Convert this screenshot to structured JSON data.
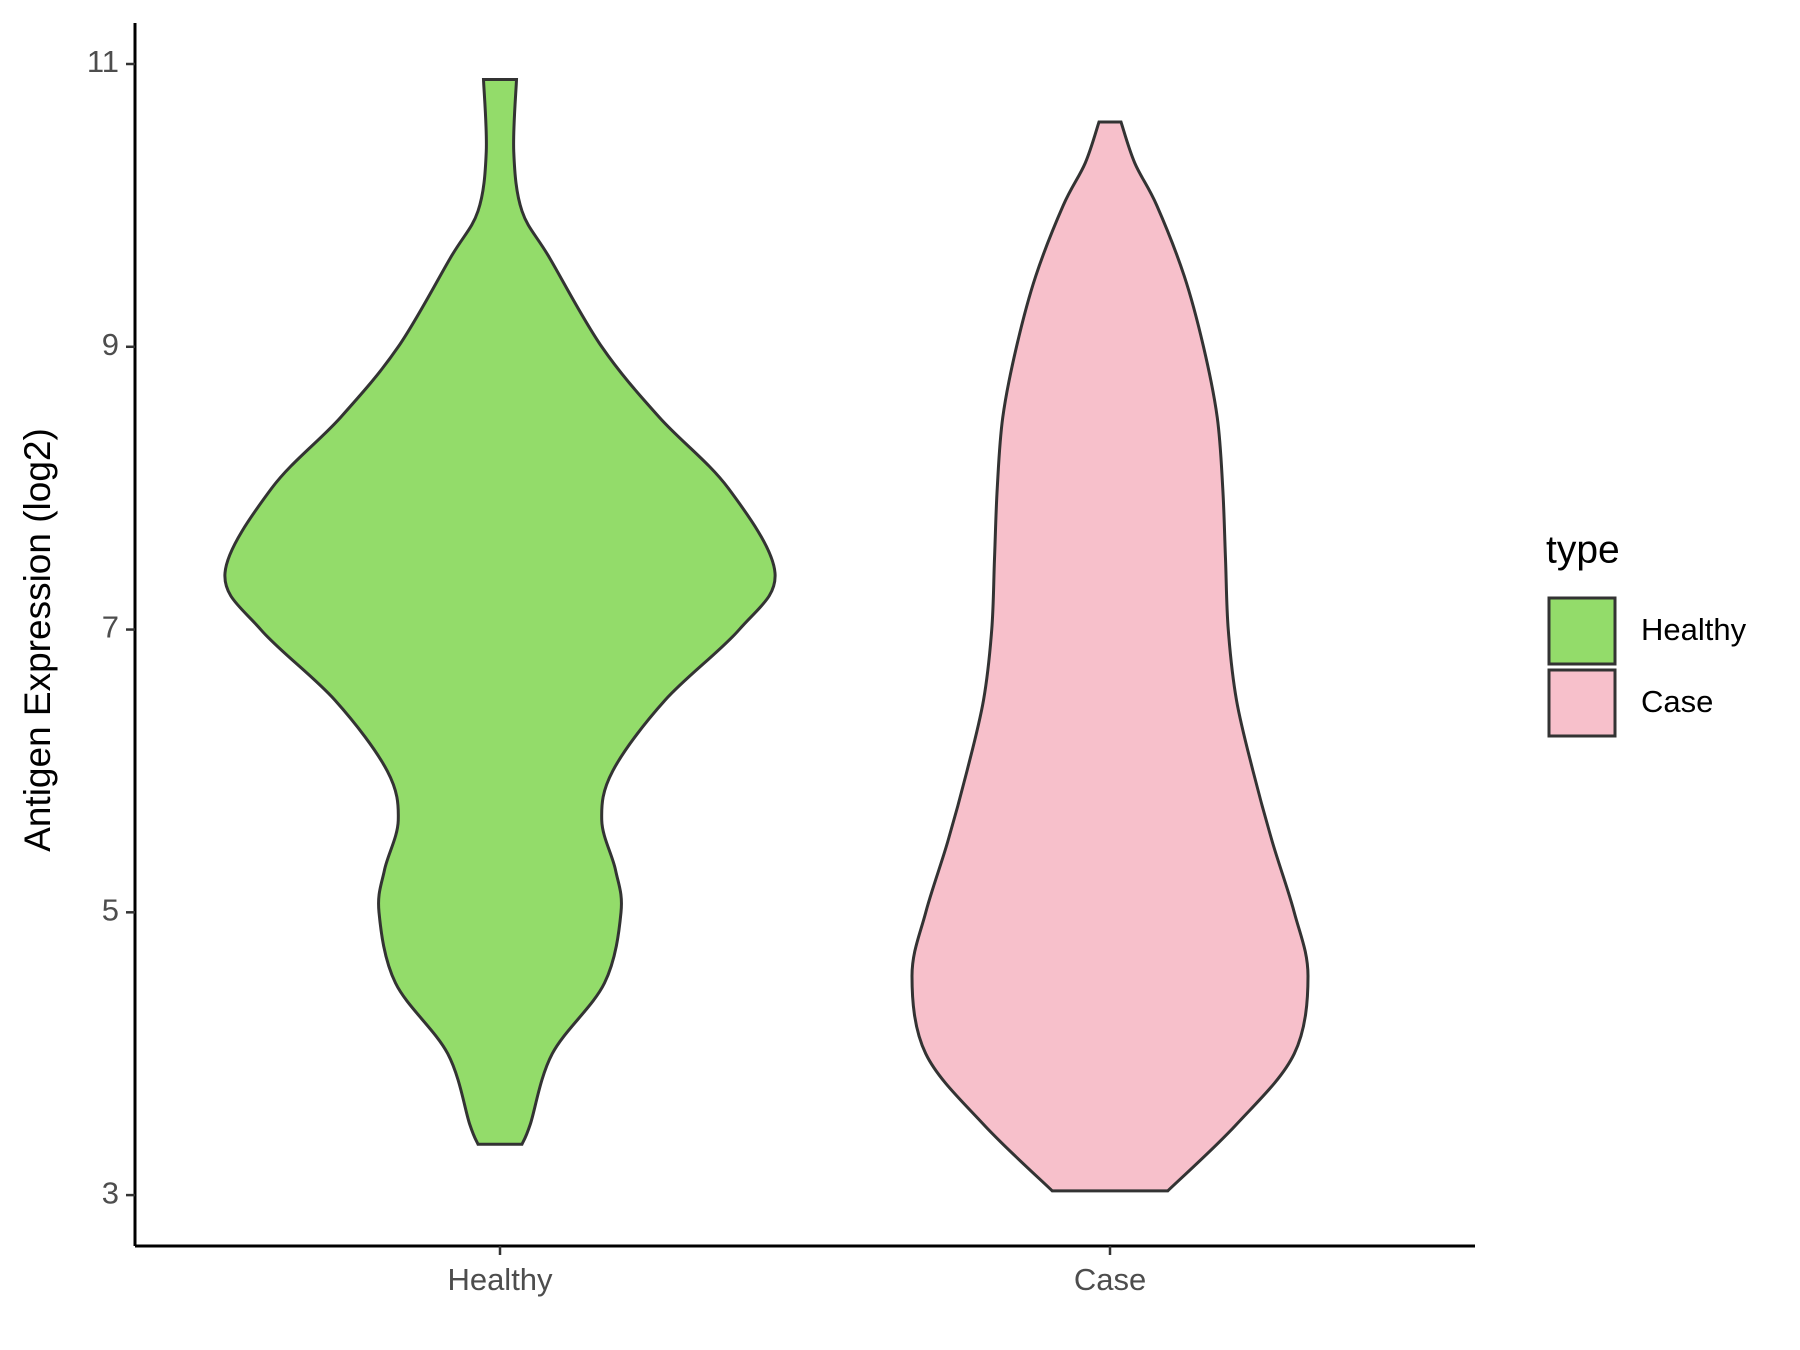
{
  "chart_data": {
    "type": "violin",
    "y_label": "Antigen Expression (log2)",
    "categories": [
      "Healthy",
      "Case"
    ],
    "ylim": [
      2.64,
      11.29
    ],
    "yticks": [
      3,
      5,
      7,
      9,
      11
    ],
    "legend_title": "type",
    "legend_position": "right",
    "series": [
      {
        "name": "Healthy",
        "color": "#93dc6a",
        "y": [
          3.36,
          3.5,
          4.0,
          4.5,
          5.0,
          5.3,
          5.65,
          6.0,
          6.5,
          7.0,
          7.4,
          8.0,
          8.5,
          9.0,
          9.63,
          9.96,
          10.38,
          10.89
        ],
        "density": [
          0.08,
          0.11,
          0.19,
          0.38,
          0.44,
          0.42,
          0.37,
          0.41,
          0.6,
          0.87,
          1.0,
          0.83,
          0.58,
          0.37,
          0.18,
          0.08,
          0.05,
          0.06
        ]
      },
      {
        "name": "Case",
        "color": "#f7c0cb",
        "y": [
          3.03,
          3.5,
          4.0,
          4.55,
          5.0,
          5.5,
          6.0,
          6.5,
          7.0,
          7.5,
          8.0,
          8.5,
          9.0,
          9.5,
          10.0,
          10.3,
          10.59
        ],
        "density": [
          0.21,
          0.46,
          0.67,
          0.72,
          0.67,
          0.59,
          0.52,
          0.46,
          0.43,
          0.42,
          0.41,
          0.39,
          0.34,
          0.27,
          0.17,
          0.09,
          0.04
        ]
      }
    ]
  }
}
